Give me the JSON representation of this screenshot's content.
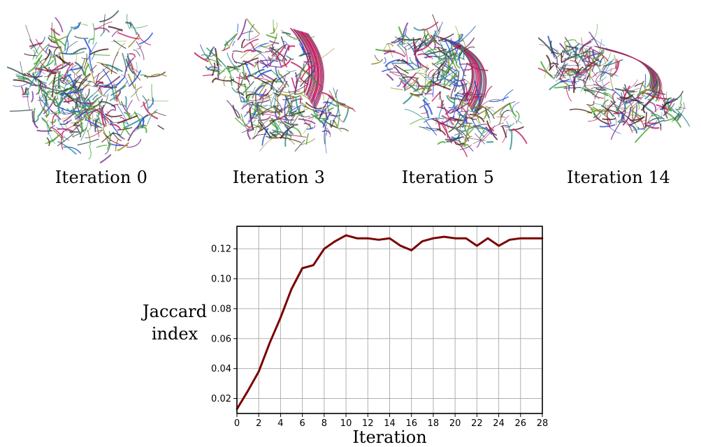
{
  "panels": [
    {
      "caption": "Iteration 0"
    },
    {
      "caption": "Iteration 3"
    },
    {
      "caption": "Iteration 5"
    },
    {
      "caption": "Iteration 14"
    }
  ],
  "palette": [
    "#2f4f4f",
    "#c2185b",
    "#1e4fd8",
    "#3fa52a",
    "#8b8b1f",
    "#4a1c1c",
    "#2b8a8a",
    "#7a2f8c"
  ],
  "chart_data": {
    "type": "line",
    "xlabel": "Iteration",
    "ylabel_lines": [
      "Jaccard",
      "index"
    ],
    "xlim": [
      0,
      28
    ],
    "ylim": [
      0.01,
      0.135
    ],
    "xticks": [
      0,
      2,
      4,
      6,
      8,
      10,
      12,
      14,
      16,
      18,
      20,
      22,
      24,
      26,
      28
    ],
    "xtick_labels": [
      "0",
      "2",
      "4",
      "6",
      "8",
      "10",
      "12",
      "14",
      "16",
      "18",
      "20",
      "22",
      "24",
      "26",
      "28"
    ],
    "yticks": [
      0.02,
      0.04,
      0.06,
      0.08,
      0.1,
      0.12
    ],
    "ytick_labels": [
      "0.02",
      "0.04",
      "0.06",
      "0.08",
      "0.10",
      "0.12"
    ],
    "grid": true,
    "line_color": "#7b0000",
    "series": [
      {
        "name": "Jaccard index",
        "x": [
          0,
          1,
          2,
          3,
          4,
          5,
          6,
          7,
          8,
          9,
          10,
          11,
          12,
          13,
          14,
          15,
          16,
          17,
          18,
          19,
          20,
          21,
          22,
          23,
          24,
          25,
          26,
          27,
          28
        ],
        "y": [
          0.013,
          0.025,
          0.038,
          0.057,
          0.074,
          0.093,
          0.107,
          0.109,
          0.12,
          0.125,
          0.129,
          0.127,
          0.127,
          0.126,
          0.127,
          0.122,
          0.119,
          0.125,
          0.127,
          0.128,
          0.127,
          0.127,
          0.122,
          0.127,
          0.122,
          0.126,
          0.127,
          0.127,
          0.127
        ]
      }
    ]
  }
}
